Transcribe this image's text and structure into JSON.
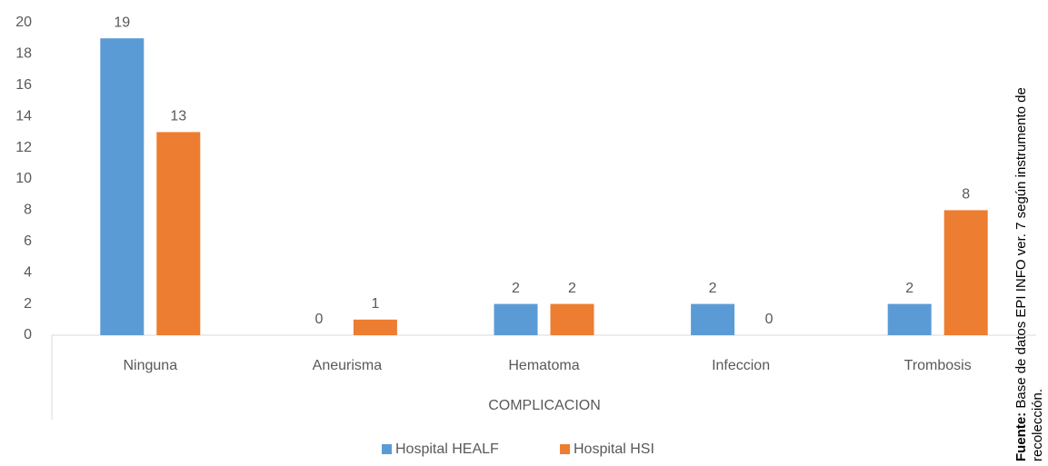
{
  "chart_data": {
    "type": "bar",
    "x_label": "COMPLICACION",
    "categories": [
      "Ninguna",
      "Aneurisma",
      "Hematoma",
      "Infeccion",
      "Trombosis"
    ],
    "series": [
      {
        "name": "Hospital HEALF",
        "color": "#5b9bd5",
        "values": [
          19,
          0,
          2,
          2,
          2
        ]
      },
      {
        "name": "Hospital HSI",
        "color": "#ed7d31",
        "values": [
          13,
          1,
          2,
          0,
          8
        ]
      }
    ],
    "ylim": [
      0,
      20
    ],
    "yticks": [
      0,
      2,
      4,
      6,
      8,
      10,
      12,
      14,
      16,
      18,
      20
    ],
    "grid": false,
    "legend": "bottom",
    "source_label": "Fuente:",
    "source_lines": [
      "Base de datos EPI INFO ver. 7 según instrumento de",
      "recolección."
    ]
  }
}
